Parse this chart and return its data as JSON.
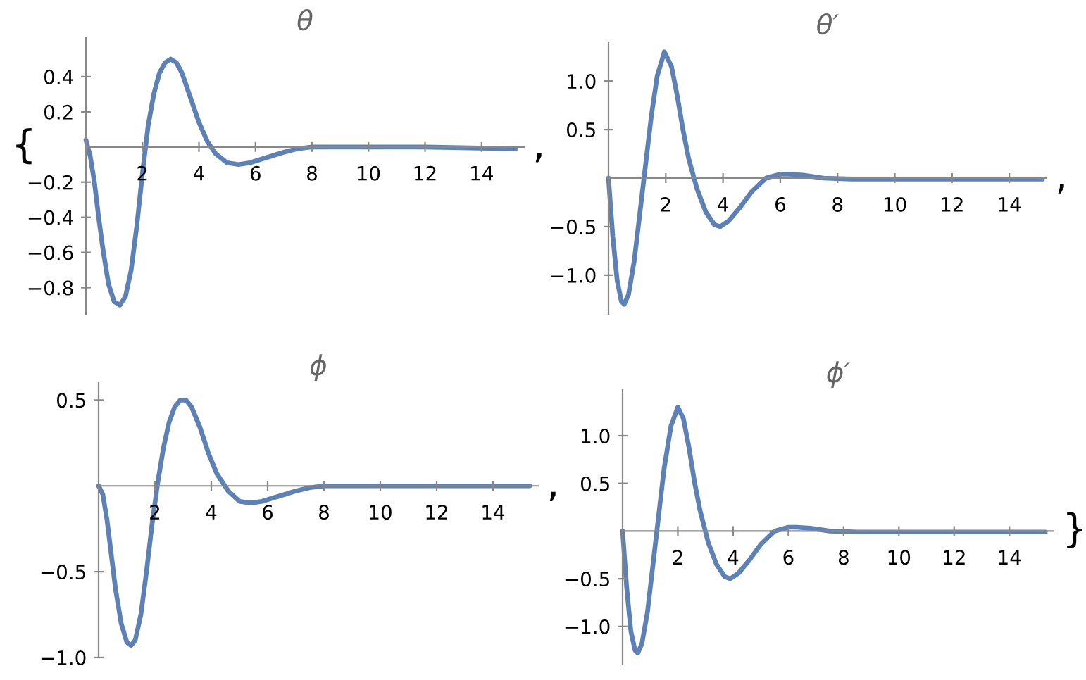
{
  "chart_data": [
    {
      "type": "line",
      "title": "θ",
      "annotations": [
        "{",
        ","
      ],
      "xlim": [
        0,
        15.5
      ],
      "ylim": [
        -0.95,
        0.62
      ],
      "xticks": [
        2,
        4,
        6,
        8,
        10,
        12,
        14
      ],
      "yticks": [
        {
          "value": -0.8,
          "label": "−0.8"
        },
        {
          "value": -0.6,
          "label": "−0.6"
        },
        {
          "value": -0.4,
          "label": "−0.4"
        },
        {
          "value": -0.2,
          "label": "−0.2"
        },
        0.2,
        0.4
      ],
      "x": [
        0,
        0.15,
        0.3,
        0.45,
        0.6,
        0.8,
        1.0,
        1.2,
        1.4,
        1.6,
        1.8,
        2.0,
        2.2,
        2.4,
        2.6,
        2.8,
        3.0,
        3.2,
        3.4,
        3.7,
        4.0,
        4.3,
        4.6,
        5.0,
        5.4,
        5.8,
        6.2,
        6.6,
        7.0,
        7.5,
        8.0,
        9.0,
        10.0,
        12.0,
        15.2
      ],
      "series": [
        {
          "color": "#5e81b5",
          "values": [
            0.04,
            -0.05,
            -0.2,
            -0.4,
            -0.58,
            -0.78,
            -0.88,
            -0.9,
            -0.85,
            -0.7,
            -0.45,
            -0.15,
            0.12,
            0.3,
            0.42,
            0.48,
            0.5,
            0.48,
            0.42,
            0.28,
            0.14,
            0.03,
            -0.04,
            -0.09,
            -0.1,
            -0.09,
            -0.07,
            -0.05,
            -0.03,
            -0.01,
            0.0,
            0.0,
            0.0,
            0.0,
            -0.01
          ]
        }
      ]
    },
    {
      "type": "line",
      "title": "θ′",
      "annotations": [
        ","
      ],
      "xlim": [
        0,
        15.3
      ],
      "ylim": [
        -1.4,
        1.4
      ],
      "xticks": [
        2,
        4,
        6,
        8,
        10,
        12,
        14
      ],
      "yticks": [
        {
          "value": -1.0,
          "label": "−1.0"
        },
        {
          "value": -0.5,
          "label": "−0.5"
        },
        0.5,
        {
          "value": 1.0,
          "label": "1.0"
        }
      ],
      "x": [
        0,
        0.15,
        0.3,
        0.45,
        0.55,
        0.7,
        0.9,
        1.1,
        1.3,
        1.5,
        1.7,
        1.95,
        2.2,
        2.4,
        2.6,
        2.8,
        3.1,
        3.4,
        3.7,
        3.9,
        4.2,
        4.6,
        5.0,
        5.5,
        6.0,
        6.3,
        6.8,
        7.5,
        8.5,
        10.0,
        12.0,
        15.15
      ],
      "series": [
        {
          "color": "#5e81b5",
          "values": [
            0.0,
            -0.6,
            -1.05,
            -1.27,
            -1.3,
            -1.2,
            -0.85,
            -0.35,
            0.15,
            0.65,
            1.05,
            1.3,
            1.15,
            0.85,
            0.5,
            0.2,
            -0.12,
            -0.35,
            -0.48,
            -0.5,
            -0.44,
            -0.3,
            -0.14,
            0.0,
            0.04,
            0.04,
            0.03,
            0.0,
            -0.01,
            -0.01,
            -0.01,
            -0.01
          ]
        }
      ]
    },
    {
      "type": "line",
      "title": "ϕ",
      "annotations": [
        ","
      ],
      "xlim": [
        0,
        15.6
      ],
      "ylim": [
        -1.0,
        0.6
      ],
      "xticks": [
        2,
        4,
        6,
        8,
        10,
        12,
        14
      ],
      "yticks": [
        {
          "value": -1.0,
          "label": "−1.0"
        },
        {
          "value": -0.5,
          "label": "−0.5"
        },
        0.5
      ],
      "x": [
        0,
        0.15,
        0.3,
        0.45,
        0.6,
        0.8,
        1.0,
        1.15,
        1.3,
        1.5,
        1.7,
        1.9,
        2.1,
        2.3,
        2.5,
        2.7,
        2.9,
        3.1,
        3.3,
        3.6,
        3.9,
        4.2,
        4.6,
        5.0,
        5.4,
        5.8,
        6.2,
        6.6,
        7.0,
        7.5,
        8.0,
        9.0,
        10.0,
        12.0,
        15.3
      ],
      "series": [
        {
          "color": "#5e81b5",
          "values": [
            0.0,
            -0.05,
            -0.2,
            -0.4,
            -0.6,
            -0.8,
            -0.91,
            -0.93,
            -0.9,
            -0.75,
            -0.5,
            -0.22,
            0.02,
            0.22,
            0.37,
            0.46,
            0.5,
            0.5,
            0.46,
            0.34,
            0.19,
            0.07,
            -0.03,
            -0.09,
            -0.1,
            -0.09,
            -0.07,
            -0.05,
            -0.03,
            -0.01,
            0.0,
            0.0,
            0.0,
            0.0,
            0.0
          ]
        }
      ]
    },
    {
      "type": "line",
      "title": "ϕ′",
      "annotations": [
        "}"
      ],
      "xlim": [
        0,
        15.6
      ],
      "ylim": [
        -1.4,
        1.48
      ],
      "xticks": [
        2,
        4,
        6,
        8,
        10,
        12,
        14
      ],
      "yticks": [
        {
          "value": -1.0,
          "label": "−1.0"
        },
        {
          "value": -0.5,
          "label": "−0.5"
        },
        0.5,
        {
          "value": 1.0,
          "label": "1.0"
        }
      ],
      "x": [
        0,
        0.15,
        0.3,
        0.45,
        0.55,
        0.7,
        0.9,
        1.1,
        1.3,
        1.5,
        1.75,
        2.0,
        2.2,
        2.4,
        2.6,
        2.8,
        3.1,
        3.4,
        3.7,
        3.9,
        4.2,
        4.6,
        5.0,
        5.5,
        6.0,
        6.3,
        6.8,
        7.5,
        8.5,
        10.0,
        12.0,
        15.3
      ],
      "series": [
        {
          "color": "#5e81b5",
          "values": [
            0.0,
            -0.6,
            -1.05,
            -1.25,
            -1.28,
            -1.18,
            -0.85,
            -0.35,
            0.15,
            0.65,
            1.1,
            1.3,
            1.18,
            0.88,
            0.52,
            0.22,
            -0.12,
            -0.35,
            -0.48,
            -0.5,
            -0.44,
            -0.3,
            -0.14,
            0.0,
            0.04,
            0.04,
            0.03,
            0.0,
            -0.01,
            -0.01,
            -0.01,
            -0.01
          ]
        }
      ]
    }
  ]
}
